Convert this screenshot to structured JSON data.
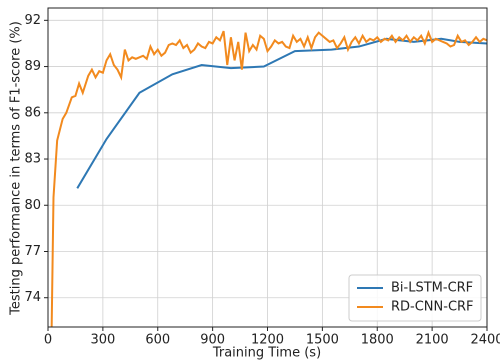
{
  "chart_data": {
    "type": "line",
    "xlabel": "Training Time (s)",
    "ylabel": "Testing performance in terms of F1-score (%)",
    "xlim": [
      0,
      2400
    ],
    "xticks": [
      0,
      300,
      600,
      900,
      1200,
      1500,
      1800,
      2100,
      2400
    ],
    "ylim": [
      72.1,
      92.8
    ],
    "yticks": [
      74,
      77,
      80,
      83,
      86,
      89,
      92
    ],
    "grid": true,
    "legend": "lower right",
    "series": [
      {
        "name": "Bi-LSTM-CRF",
        "color": "#2e78b4",
        "x": [
          160,
          320,
          500,
          680,
          840,
          1000,
          1180,
          1350,
          1550,
          1700,
          1850,
          2000,
          2150,
          2250,
          2400
        ],
        "values": [
          81.1,
          84.3,
          87.3,
          88.5,
          89.1,
          88.9,
          89.0,
          90.0,
          90.1,
          90.3,
          90.8,
          90.6,
          90.8,
          90.6,
          90.5
        ]
      },
      {
        "name": "RD-CNN-CRF",
        "color": "#f28a1e",
        "x": [
          20,
          30,
          50,
          80,
          100,
          130,
          150,
          170,
          190,
          220,
          240,
          260,
          280,
          300,
          320,
          340,
          360,
          380,
          400,
          420,
          440,
          460,
          480,
          500,
          520,
          540,
          560,
          580,
          600,
          620,
          640,
          660,
          680,
          700,
          720,
          740,
          760,
          780,
          800,
          820,
          840,
          860,
          880,
          900,
          920,
          940,
          960,
          980,
          1000,
          1020,
          1040,
          1060,
          1080,
          1100,
          1120,
          1140,
          1160,
          1180,
          1200,
          1220,
          1240,
          1260,
          1280,
          1300,
          1320,
          1340,
          1360,
          1380,
          1400,
          1420,
          1440,
          1460,
          1480,
          1500,
          1520,
          1540,
          1560,
          1580,
          1600,
          1620,
          1640,
          1660,
          1680,
          1700,
          1720,
          1740,
          1760,
          1780,
          1800,
          1820,
          1840,
          1860,
          1880,
          1900,
          1920,
          1940,
          1960,
          1980,
          2000,
          2020,
          2040,
          2060,
          2080,
          2100,
          2120,
          2140,
          2160,
          2180,
          2200,
          2220,
          2240,
          2260,
          2280,
          2300,
          2320,
          2340,
          2360,
          2380,
          2400
        ],
        "values": [
          72.1,
          80.5,
          84.2,
          85.6,
          86.0,
          87.0,
          87.1,
          87.9,
          87.3,
          88.4,
          88.8,
          88.3,
          88.7,
          88.6,
          89.4,
          89.8,
          89.1,
          88.8,
          88.3,
          90.1,
          89.4,
          89.6,
          89.5,
          89.6,
          89.7,
          89.5,
          90.3,
          89.8,
          90.1,
          89.7,
          89.9,
          90.4,
          90.5,
          90.4,
          90.7,
          90.2,
          90.4,
          89.9,
          90.1,
          90.5,
          90.3,
          90.2,
          90.6,
          90.5,
          90.9,
          90.7,
          91.3,
          89.1,
          90.9,
          89.4,
          90.6,
          88.8,
          91.2,
          90.0,
          90.4,
          90.1,
          91.0,
          90.8,
          90.0,
          90.3,
          90.7,
          90.5,
          90.6,
          90.3,
          90.2,
          91.0,
          90.6,
          90.8,
          90.3,
          90.9,
          90.2,
          90.9,
          91.2,
          91.0,
          90.8,
          90.6,
          90.7,
          90.2,
          90.5,
          90.9,
          90.1,
          90.6,
          90.9,
          90.5,
          91.0,
          90.6,
          90.8,
          90.7,
          90.9,
          90.6,
          90.8,
          90.7,
          91.0,
          90.6,
          90.9,
          90.7,
          91.0,
          90.6,
          90.9,
          90.7,
          91.0,
          90.5,
          91.2,
          90.6,
          90.8,
          90.7,
          90.6,
          90.5,
          90.3,
          90.4,
          91.0,
          90.6,
          90.7,
          90.4,
          90.6,
          90.9,
          90.6,
          90.8,
          90.7
        ]
      }
    ]
  }
}
